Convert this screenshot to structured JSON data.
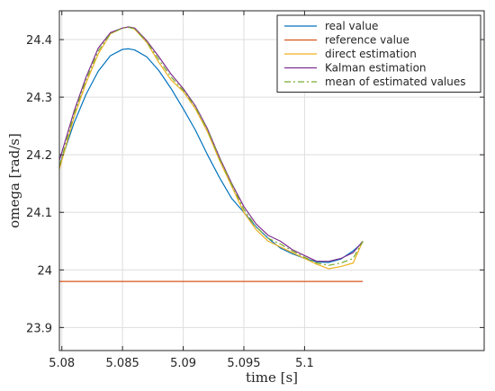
{
  "chart_data": {
    "type": "line",
    "title": "",
    "xlabel": "time   [s]",
    "ylabel": "omega [rad/s]",
    "xlim": [
      5.0798,
      5.1148
    ],
    "ylim": [
      23.86,
      24.45
    ],
    "xticks": [
      5.08,
      5.085,
      5.09,
      5.095,
      5.1
    ],
    "xtick_labels": [
      "5.08",
      "5.085",
      "5.09",
      "5.095",
      "5.1"
    ],
    "yticks": [
      23.9,
      24.0,
      24.1,
      24.2,
      24.3,
      24.4
    ],
    "ytick_labels": [
      "23.9",
      "24",
      "24.1",
      "24.2",
      "24.3",
      "24.4"
    ],
    "grid": true,
    "legend_position": "top-right",
    "series": [
      {
        "name": "real value",
        "color": "#0072BD",
        "dash": "solid",
        "x": [
          5.0798,
          5.081,
          5.082,
          5.083,
          5.084,
          5.085,
          5.0855,
          5.086,
          5.087,
          5.088,
          5.089,
          5.09,
          5.091,
          5.092,
          5.093,
          5.094,
          5.095,
          5.096,
          5.097,
          5.098,
          5.099,
          5.1,
          5.101,
          5.102,
          5.103,
          5.104,
          5.1048
        ],
        "y": [
          24.18,
          24.255,
          24.305,
          24.345,
          24.372,
          24.383,
          24.384,
          24.382,
          24.37,
          24.346,
          24.315,
          24.28,
          24.243,
          24.2,
          24.16,
          24.124,
          24.1,
          24.075,
          24.055,
          24.038,
          24.028,
          24.02,
          24.014,
          24.013,
          24.019,
          24.033,
          24.048
        ]
      },
      {
        "name": "reference value",
        "color": "#D95319",
        "dash": "solid",
        "x": [
          5.0798,
          5.1048
        ],
        "y": [
          23.98,
          23.98
        ]
      },
      {
        "name": "direct estimation",
        "color": "#EDB120",
        "dash": "solid",
        "x": [
          5.0798,
          5.081,
          5.082,
          5.083,
          5.084,
          5.085,
          5.0855,
          5.086,
          5.087,
          5.088,
          5.089,
          5.09,
          5.091,
          5.092,
          5.093,
          5.094,
          5.095,
          5.096,
          5.097,
          5.098,
          5.099,
          5.1,
          5.101,
          5.102,
          5.103,
          5.104,
          5.1048
        ],
        "y": [
          24.175,
          24.265,
          24.325,
          24.375,
          24.41,
          24.42,
          24.422,
          24.418,
          24.395,
          24.36,
          24.33,
          24.31,
          24.28,
          24.24,
          24.19,
          24.145,
          24.1,
          24.07,
          24.05,
          24.04,
          24.03,
          24.02,
          24.01,
          24.002,
          24.006,
          24.012,
          24.05
        ]
      },
      {
        "name": "Kalman estimation",
        "color": "#7E2F8E",
        "dash": "solid",
        "x": [
          5.0798,
          5.081,
          5.082,
          5.083,
          5.084,
          5.085,
          5.0855,
          5.086,
          5.087,
          5.088,
          5.089,
          5.09,
          5.091,
          5.092,
          5.093,
          5.094,
          5.095,
          5.096,
          5.097,
          5.098,
          5.099,
          5.1,
          5.101,
          5.102,
          5.103,
          5.104,
          5.1048
        ],
        "y": [
          24.19,
          24.275,
          24.335,
          24.385,
          24.412,
          24.42,
          24.422,
          24.42,
          24.398,
          24.37,
          24.34,
          24.315,
          24.285,
          24.245,
          24.195,
          24.15,
          24.11,
          24.08,
          24.06,
          24.05,
          24.035,
          24.025,
          24.015,
          24.015,
          24.02,
          24.03,
          24.05
        ]
      },
      {
        "name": "mean of estimated values",
        "color": "#77AC30",
        "dash": "dashdot",
        "x": [
          5.0798,
          5.081,
          5.082,
          5.083,
          5.084,
          5.085,
          5.0855,
          5.086,
          5.087,
          5.088,
          5.089,
          5.09,
          5.091,
          5.092,
          5.093,
          5.094,
          5.095,
          5.096,
          5.097,
          5.098,
          5.099,
          5.1,
          5.101,
          5.102,
          5.103,
          5.104,
          5.1048
        ],
        "y": [
          24.18,
          24.27,
          24.33,
          24.38,
          24.41,
          24.42,
          24.421,
          24.419,
          24.396,
          24.365,
          24.335,
          24.312,
          24.283,
          24.243,
          24.193,
          24.148,
          24.105,
          24.075,
          24.055,
          24.045,
          24.033,
          24.022,
          24.012,
          24.008,
          24.012,
          24.02,
          24.05
        ]
      }
    ]
  }
}
